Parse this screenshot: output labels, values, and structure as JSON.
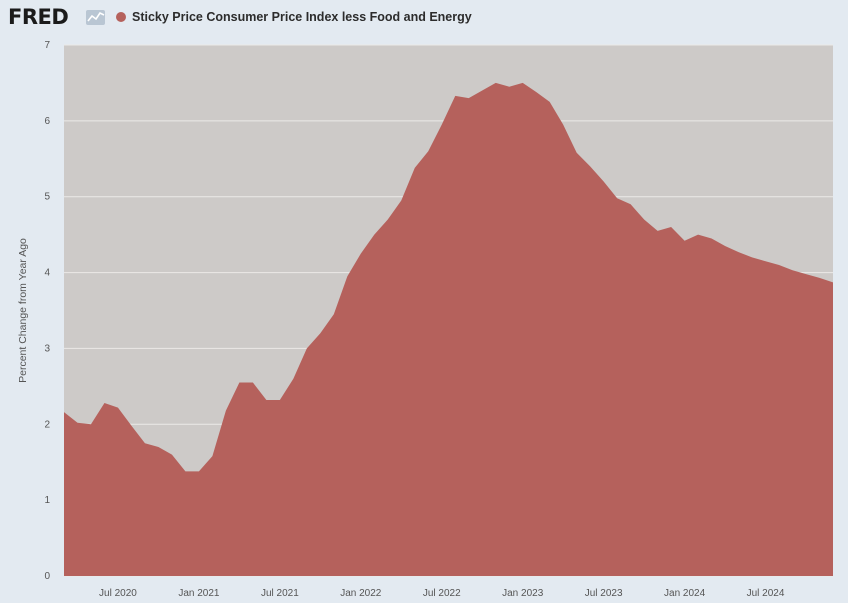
{
  "header": {
    "logo_text": "FRED",
    "logo_mark_icon": "fred-chart-mark-icon"
  },
  "legend": {
    "label": "Sticky Price Consumer Price Index less Food and Energy",
    "color": "#b5615c"
  },
  "colors": {
    "plot_background": "#cdcac8",
    "page_background": "#e3eaf1",
    "area_fill": "#b5615c",
    "gridline": "#ebe9e7"
  },
  "chart_data": {
    "type": "area",
    "ylabel": "Percent Change from Year Ago",
    "xlabel": "",
    "ylim": [
      0,
      7
    ],
    "xlim": [
      "2020-03",
      "2024-12"
    ],
    "yticks": [
      "0",
      "1",
      "2",
      "3",
      "4",
      "5",
      "6",
      "7"
    ],
    "xticks": [
      {
        "label": "Jul 2020",
        "month": "2020-07"
      },
      {
        "label": "Jan 2021",
        "month": "2021-01"
      },
      {
        "label": "Jul 2021",
        "month": "2021-07"
      },
      {
        "label": "Jan 2022",
        "month": "2022-01"
      },
      {
        "label": "Jul 2022",
        "month": "2022-07"
      },
      {
        "label": "Jan 2023",
        "month": "2023-01"
      },
      {
        "label": "Jul 2023",
        "month": "2023-07"
      },
      {
        "label": "Jan 2024",
        "month": "2024-01"
      },
      {
        "label": "Jul 2024",
        "month": "2024-07"
      }
    ],
    "grid": true,
    "series": [
      {
        "name": "Sticky Price Consumer Price Index less Food and Energy",
        "x": [
          "2020-03",
          "2020-04",
          "2020-05",
          "2020-06",
          "2020-07",
          "2020-08",
          "2020-09",
          "2020-10",
          "2020-11",
          "2020-12",
          "2021-01",
          "2021-02",
          "2021-03",
          "2021-04",
          "2021-05",
          "2021-06",
          "2021-07",
          "2021-08",
          "2021-09",
          "2021-10",
          "2021-11",
          "2021-12",
          "2022-01",
          "2022-02",
          "2022-03",
          "2022-04",
          "2022-05",
          "2022-06",
          "2022-07",
          "2022-08",
          "2022-09",
          "2022-10",
          "2022-11",
          "2022-12",
          "2023-01",
          "2023-02",
          "2023-03",
          "2023-04",
          "2023-05",
          "2023-06",
          "2023-07",
          "2023-08",
          "2023-09",
          "2023-10",
          "2023-11",
          "2023-12",
          "2024-01",
          "2024-02",
          "2024-03",
          "2024-04",
          "2024-05",
          "2024-06",
          "2024-07",
          "2024-08",
          "2024-09",
          "2024-10",
          "2024-11",
          "2024-12"
        ],
        "values": [
          2.16,
          2.02,
          2.0,
          2.28,
          2.22,
          1.98,
          1.75,
          1.7,
          1.6,
          1.38,
          1.38,
          1.58,
          2.18,
          2.55,
          2.55,
          2.32,
          2.32,
          2.6,
          3.0,
          3.2,
          3.45,
          3.95,
          4.25,
          4.5,
          4.7,
          4.95,
          5.38,
          5.6,
          5.95,
          6.33,
          6.3,
          6.4,
          6.5,
          6.45,
          6.5,
          6.38,
          6.25,
          5.95,
          5.58,
          5.4,
          5.2,
          4.98,
          4.9,
          4.7,
          4.55,
          4.6,
          4.42,
          4.5,
          4.45,
          4.35,
          4.27,
          4.2,
          4.15,
          4.1,
          4.03,
          3.98,
          3.93,
          3.87
        ]
      }
    ]
  }
}
